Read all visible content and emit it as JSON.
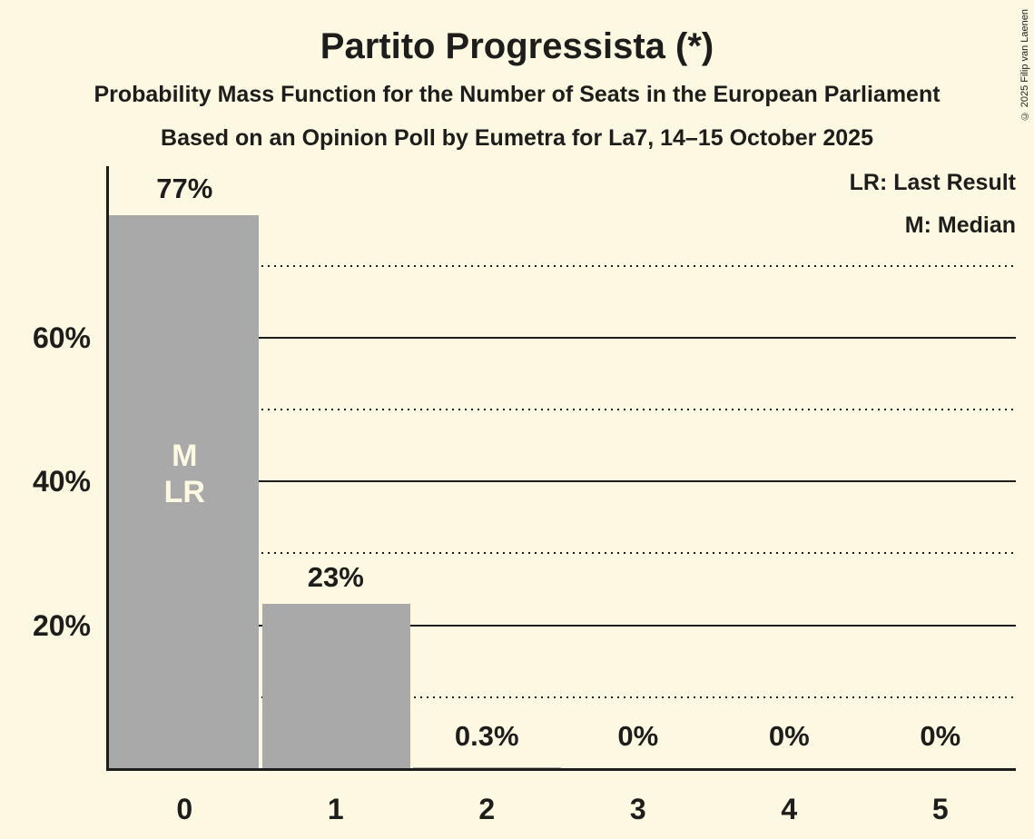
{
  "header": {
    "title": "Partito Progressista (*)",
    "subtitle1": "Probability Mass Function for the Number of Seats in the European Parliament",
    "subtitle2": "Based on an Opinion Poll by Eumetra for La7, 14–15 October 2025"
  },
  "legend": {
    "lr": "LR: Last Result",
    "m": "M: Median"
  },
  "copyright": "© 2025 Filip van Laenen",
  "colors": {
    "background": "#FCF8E1",
    "bar": "#A9A9A9",
    "text": "#1D1D1B",
    "bar_annotation_text": "#FCF8E1"
  },
  "chart_data": {
    "type": "bar",
    "title": "Partito Progressista (*)",
    "categories": [
      "0",
      "1",
      "2",
      "3",
      "4",
      "5"
    ],
    "values": [
      77,
      23,
      0.3,
      0,
      0,
      0
    ],
    "value_labels": [
      "77%",
      "23%",
      "0.3%",
      "0%",
      "0%",
      "0%"
    ],
    "ylim": [
      0,
      80
    ],
    "yticks": [
      {
        "value": 20,
        "label": "20%"
      },
      {
        "value": 40,
        "label": "40%"
      },
      {
        "value": 60,
        "label": "60%"
      }
    ],
    "minor_gridlines": [
      10,
      30,
      50,
      70
    ],
    "grid": true,
    "legend_position": "top-right",
    "annotations": [
      {
        "category_index": 0,
        "lines": [
          "M",
          "LR"
        ],
        "y_center_pct": 41
      }
    ]
  }
}
